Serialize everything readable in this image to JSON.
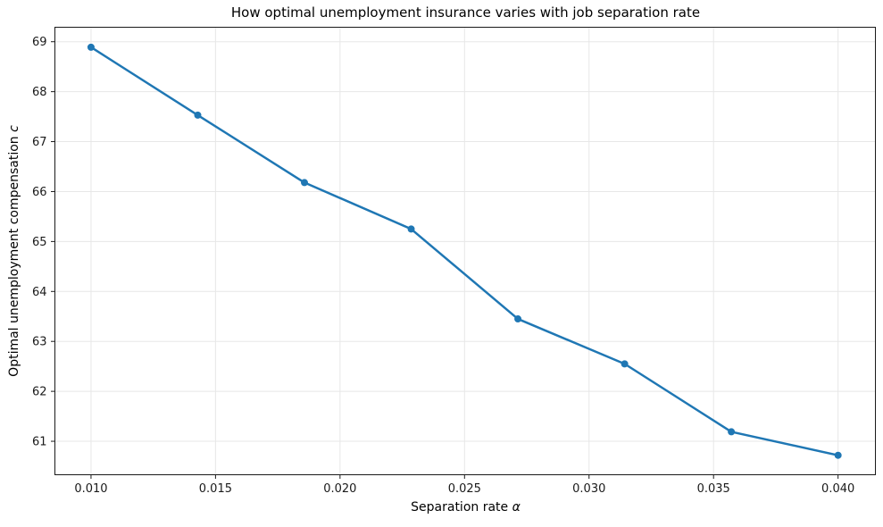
{
  "title": "How optimal unemployment insurance varies with job separation rate",
  "xlabel": {
    "text": "Separation rate ",
    "italic": "α"
  },
  "ylabel": {
    "text": "Optimal unemployment compensation ",
    "italic": "c"
  },
  "chart_data": {
    "type": "line",
    "title": "How optimal unemployment insurance varies with job separation rate",
    "xlabel": "Separation rate α",
    "ylabel": "Optimal unemployment compensation c",
    "x": [
      0.01,
      0.014286,
      0.018571,
      0.022857,
      0.027143,
      0.031429,
      0.035714,
      0.04
    ],
    "y": [
      68.89,
      67.53,
      66.18,
      65.25,
      63.45,
      62.55,
      61.19,
      60.72
    ],
    "xlim": [
      0.00855,
      0.0415
    ],
    "ylim": [
      60.33,
      69.29
    ],
    "x_ticks": [
      0.01,
      0.015,
      0.02,
      0.025,
      0.03,
      0.035,
      0.04
    ],
    "x_tick_labels": [
      "0.010",
      "0.015",
      "0.020",
      "0.025",
      "0.030",
      "0.035",
      "0.040"
    ],
    "y_ticks": [
      61,
      62,
      63,
      64,
      65,
      66,
      67,
      68,
      69
    ],
    "y_tick_labels": [
      "61",
      "62",
      "63",
      "64",
      "65",
      "66",
      "67",
      "68",
      "69"
    ],
    "grid": true,
    "legend": false,
    "marker": "o",
    "colors": {
      "line": "#1f77b4",
      "marker": "#1f77b4",
      "grid": "#e7e7e7",
      "spine": "#1a1a1a",
      "tick": "#1a1a1a",
      "text": "#1a1a1a",
      "background": "#ffffff"
    }
  }
}
